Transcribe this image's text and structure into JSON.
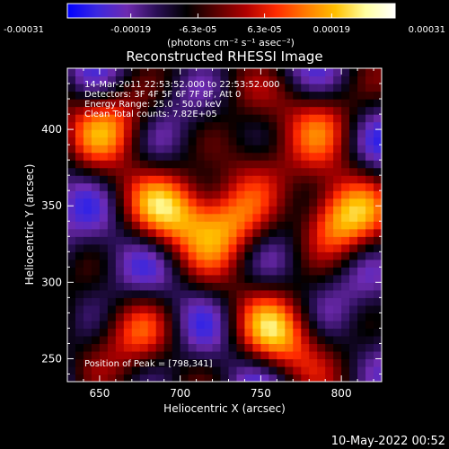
{
  "chart_data": {
    "type": "heatmap",
    "title": "Reconstructed RHESSI Image",
    "xlabel": "Heliocentric X (arcsec)",
    "ylabel": "Heliocentric Y (arcsec)",
    "xlim": [
      630,
      825
    ],
    "ylim": [
      235,
      440
    ],
    "x_ticks": [
      650,
      700,
      750,
      800
    ],
    "y_ticks": [
      250,
      300,
      350,
      400
    ],
    "colorbar": {
      "tick_labels": [
        "-0.00031",
        "-0.00019",
        "-6.3e-05",
        "6.3e-05",
        "0.00019",
        "0.00031"
      ],
      "range": [
        -0.00031,
        0.00031
      ],
      "unit_label": "(photons cm⁻² s⁻¹ asec⁻²)",
      "colors": [
        "#0000ff",
        "#3c28e0",
        "#6e2ab0",
        "#2a0f55",
        "#000000",
        "#5a0000",
        "#b00000",
        "#ff2a00",
        "#ff7a00",
        "#ffc000",
        "#ffffa0",
        "#ffffff"
      ]
    },
    "annotations": [
      "14-Mar-2011 22:53:52.000 to 22:53:52.000",
      "Detectors: 3F 4F 5F 6F 7F 8F, Att 0",
      "Energy Range: 25.0 - 50.0 keV",
      "Clean    Total counts: 7.82E+05"
    ],
    "peak_label": "Position of Peak = [798,341]",
    "peak": [
      798,
      341
    ],
    "sources": [
      {
        "x": 798,
        "y": 341,
        "intensity": 0.00031
      },
      {
        "x": 730,
        "y": 340,
        "intensity": 0.00026
      },
      {
        "x": 695,
        "y": 348,
        "intensity": 0.00024
      },
      {
        "x": 660,
        "y": 405,
        "intensity": 0.00023
      },
      {
        "x": 790,
        "y": 410,
        "intensity": 0.00019
      },
      {
        "x": 760,
        "y": 265,
        "intensity": 0.00025
      },
      {
        "x": 675,
        "y": 268,
        "intensity": 0.00017
      },
      {
        "x": 745,
        "y": 375,
        "intensity": 0.00015
      }
    ]
  },
  "footer": {
    "date": "10-May-2022 00:52"
  }
}
